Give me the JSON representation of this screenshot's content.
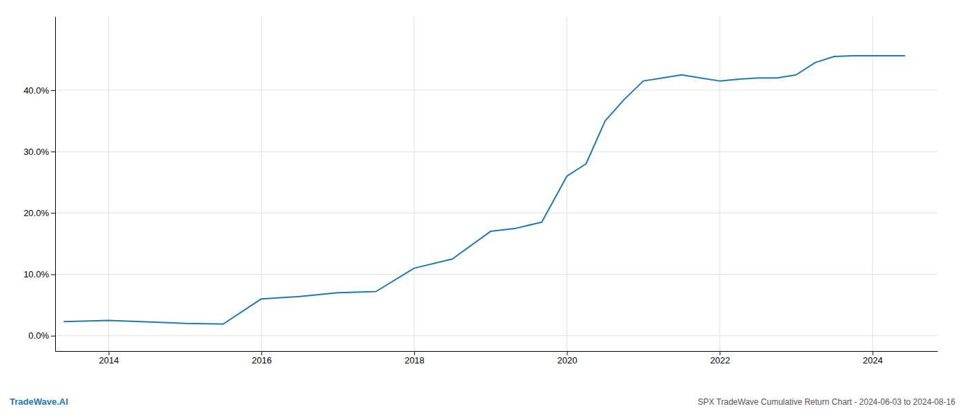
{
  "chart_data": {
    "type": "line",
    "title": "SPX TradeWave Cumulative Return Chart - 2024-06-03 to 2024-08-16",
    "annotations": [
      "TradeWave.AI"
    ],
    "color": "#1f77b4",
    "grid": true,
    "x": [
      2013.42,
      2014.0,
      2014.42,
      2015.0,
      2015.5,
      2016.0,
      2016.5,
      2017.0,
      2017.5,
      2018.0,
      2018.5,
      2019.0,
      2019.33,
      2019.67,
      2020.0,
      2020.25,
      2020.5,
      2020.75,
      2021.0,
      2021.25,
      2021.5,
      2021.75,
      2022.0,
      2022.25,
      2022.5,
      2022.75,
      2023.0,
      2023.25,
      2023.5,
      2023.75,
      2024.0,
      2024.42
    ],
    "values": [
      2.3,
      2.5,
      2.3,
      2.0,
      1.9,
      6.0,
      6.4,
      7.0,
      7.2,
      11.0,
      12.5,
      17.0,
      17.5,
      18.5,
      26.0,
      28.0,
      35.0,
      38.5,
      41.5,
      42.0,
      42.5,
      42.0,
      41.5,
      41.8,
      42.0,
      42.0,
      42.5,
      44.5,
      45.5,
      45.6,
      45.6,
      45.6
    ],
    "xlim": [
      2013.3,
      2024.85
    ],
    "ylim": [
      -2.5,
      52
    ],
    "xticks": [
      2014,
      2016,
      2018,
      2020,
      2022,
      2024
    ],
    "yticks": [
      {
        "value": 0.0,
        "label": "0.0%"
      },
      {
        "value": 10.0,
        "label": "10.0%"
      },
      {
        "value": 20.0,
        "label": "20.0%"
      },
      {
        "value": 30.0,
        "label": "30.0%"
      },
      {
        "value": 40.0,
        "label": "40.0%"
      }
    ]
  }
}
